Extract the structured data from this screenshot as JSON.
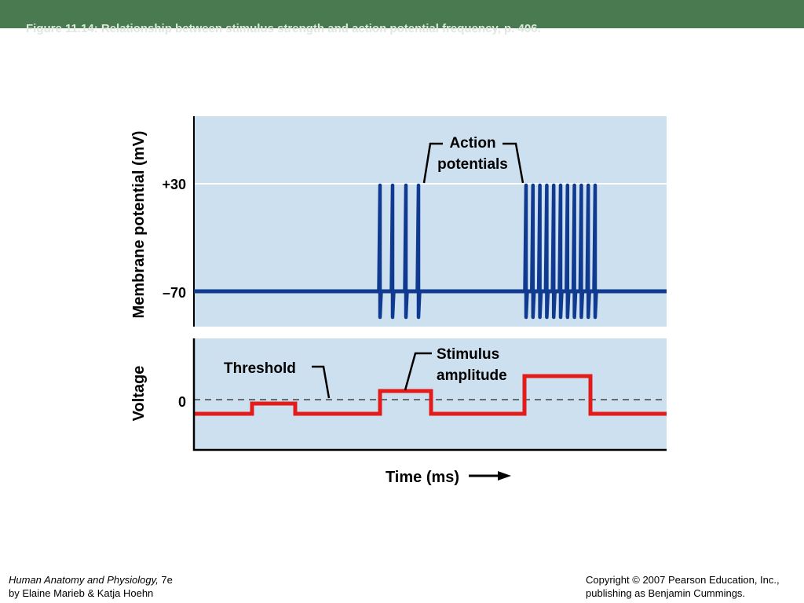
{
  "header": {
    "title": "Figure 11.14: Relationship between stimulus strength and action potential frequency, p. 406."
  },
  "colors": {
    "header_bar": "#4a7a4f",
    "panel_background": "#cde0ef",
    "membrane_trace": "#0f3a8f",
    "stimulus_trace": "#e31b1b"
  },
  "top_panel": {
    "y_axis_label": "Membrane potential (mV)",
    "tick_labels": [
      "+30",
      "–70"
    ],
    "annotation": [
      "Action",
      "potentials"
    ]
  },
  "bottom_panel": {
    "y_axis_label": "Voltage",
    "tick_label": "0",
    "threshold_label": "Threshold",
    "stimulus_label": [
      "Stimulus",
      "amplitude"
    ]
  },
  "x_axis_label": "Time (ms)",
  "footer": {
    "book_title": "Human Anatomy and Physiology,",
    "edition": " 7e",
    "authors": "by Elaine Marieb & Katja Hoehn",
    "copyright": "Copyright © 2007 Pearson Education, Inc.,",
    "publisher": "publishing as Benjamin Cummings."
  }
}
